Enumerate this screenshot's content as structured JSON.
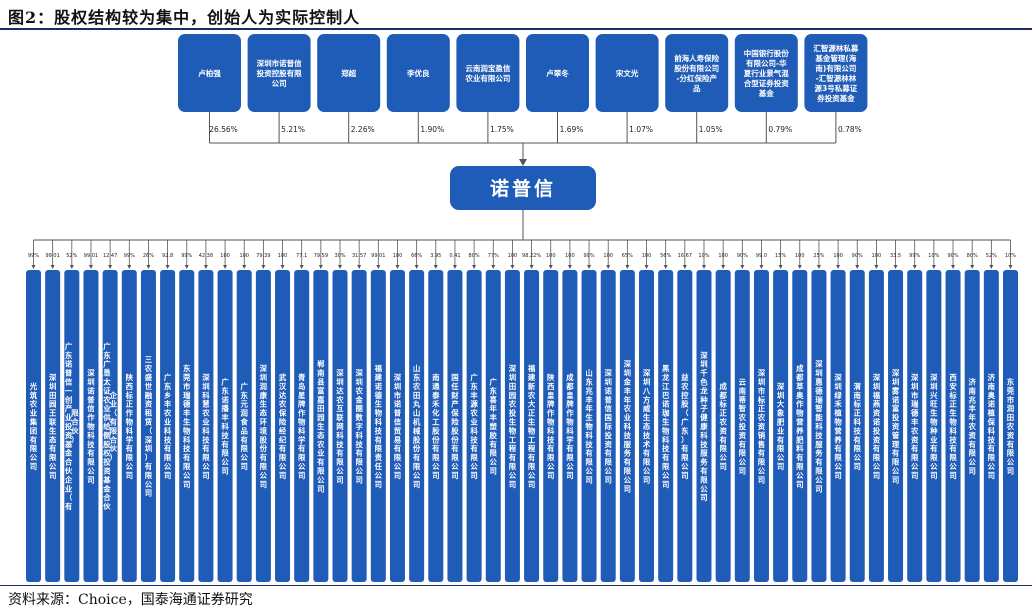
{
  "title": "图2：股权结构较为集中，创始人为实际控制人",
  "source": "资料来源：Choice，国泰海通证券研究",
  "center": {
    "name": "诺普信"
  },
  "colors": {
    "box": "#1f5cb8",
    "line": "#555555",
    "rule": "#1b2a6b"
  },
  "shareholders": [
    {
      "name": "卢柏强",
      "pct": "26.56%"
    },
    {
      "name": "深圳市诺普信投资控股有限公司",
      "pct": "5.21%"
    },
    {
      "name": "郑超",
      "pct": "2.26%"
    },
    {
      "name": "李优良",
      "pct": "1.90%"
    },
    {
      "name": "云南润宝盈信农业有限公司",
      "pct": "1.75%"
    },
    {
      "name": "卢翠冬",
      "pct": "1.69%"
    },
    {
      "name": "宋文光",
      "pct": "1.07%"
    },
    {
      "name": "前海人寿保险股份有限公司-分红保险产品",
      "pct": "1.05%"
    },
    {
      "name": "中国银行股份有限公司-华夏行业景气混合型证券投资基金",
      "pct": "0.79%"
    },
    {
      "name": "汇智源林私募基金管理(海南)有限公司-汇智源林林源3号私募证券投资基金",
      "pct": "0.78%"
    }
  ],
  "subsidiaries": [
    {
      "name": "光筑农业集团有限公司",
      "pct": "99%"
    },
    {
      "name": "深圳田园王联生态有限公司",
      "pct": "99.01"
    },
    {
      "name": "广东诺普信一创产业投资基金合伙企业（有限合伙）",
      "pct": "52%"
    },
    {
      "name": "深圳诺普信作物科技有限公司",
      "pct": "99.01"
    },
    {
      "name": "广东广垦太证农业供给侧股权投资基金合伙企业（有限合伙）",
      "pct": "12.47"
    },
    {
      "name": "陕西标正作物科学有限公司",
      "pct": "99%"
    },
    {
      "name": "三农盛世融资租赁（深圳）有限公司",
      "pct": "26%"
    },
    {
      "name": "广东乡丰农业科技有限公司",
      "pct": "92.8"
    },
    {
      "name": "东莞市瑞德丰生物科技有限公司",
      "pct": "99%"
    },
    {
      "name": "深圳科慧农业科技有限公司",
      "pct": "42.38"
    },
    {
      "name": "广东诺播丰科技有限公司",
      "pct": "100"
    },
    {
      "name": "广东元润食品有限公司",
      "pct": "100"
    },
    {
      "name": "深圳润康生态环境股份有限公司",
      "pct": "79.39"
    },
    {
      "name": "武汉达农保险经纪有限公司",
      "pct": "100"
    },
    {
      "name": "青岛星牌作物科学有限公司",
      "pct": "77.1"
    },
    {
      "name": "郸南县富嘉田园生态农业有限公司",
      "pct": "79.59"
    },
    {
      "name": "深圳达农互联网科技有限公司",
      "pct": "30%"
    },
    {
      "name": "深圳农金圈数字科技有限公司",
      "pct": "31.57"
    },
    {
      "name": "福建诺德生物科技有限责任公司",
      "pct": "99.01"
    },
    {
      "name": "深圳市诺普信贸易有限公司",
      "pct": "100"
    },
    {
      "name": "山东农田丸山机械股份有限公司",
      "pct": "66%"
    },
    {
      "name": "南通泰禾化工股份有限公司",
      "pct": "3.95"
    },
    {
      "name": "国任财产保险股份有限公司",
      "pct": "0.41"
    },
    {
      "name": "广东丰源农业科技有限公司",
      "pct": "80%"
    },
    {
      "name": "广东喜年丰塑胶有限公司",
      "pct": "77%"
    },
    {
      "name": "深圳田园农投生物工程有限公司",
      "pct": "100"
    },
    {
      "name": "福建新农大正生物工程有限公司",
      "pct": "98.22%"
    },
    {
      "name": "陕西皇牌作物科技有限公司",
      "pct": "100"
    },
    {
      "name": "成都皇牌作物科学有限公司",
      "pct": "100"
    },
    {
      "name": "山东兆丰年生物科技有限公司",
      "pct": "99%"
    },
    {
      "name": "深圳诺普信国际投资有限公司",
      "pct": "100"
    },
    {
      "name": "深圳金丰年农业科技服务有限公司",
      "pct": "65%"
    },
    {
      "name": "深圳八方威生态技术有限公司",
      "pct": "100"
    },
    {
      "name": "黑龙江巴诺珈生物科技有限公司",
      "pct": "56%"
    },
    {
      "name": "益农控股（广东）有限公司",
      "pct": "16.67"
    },
    {
      "name": "深圳千色龙种子健康科技服务有限公司",
      "pct": "10%"
    },
    {
      "name": "成都标正农资有限公司",
      "pct": "100"
    },
    {
      "name": "云南蒂智农投资有限公司",
      "pct": "90%"
    },
    {
      "name": "深圳市标正农资销售有限公司",
      "pct": "99.0"
    },
    {
      "name": "深圳大象肥业有限公司",
      "pct": "15%"
    },
    {
      "name": "成都草奥作物营养肥料有限公司",
      "pct": "100"
    },
    {
      "name": "深圳惠德瑞智能科技服务有限公司",
      "pct": "25%"
    },
    {
      "name": "深圳绿禾植物营养有限公司",
      "pct": "100"
    },
    {
      "name": "渭南标正科技有限公司",
      "pct": "90%"
    },
    {
      "name": "深圳福燕资诺投资有限公司",
      "pct": "100"
    },
    {
      "name": "深圳雾诺富投资管理有限公司",
      "pct": "33.5"
    },
    {
      "name": "深圳市瑞德丰农资有限公司",
      "pct": "99%"
    },
    {
      "name": "深圳兴旺生物种业有限公司",
      "pct": "10%"
    },
    {
      "name": "西安标正生物科技有限公司",
      "pct": "90%"
    },
    {
      "name": "济南兆丰年农资有限公司",
      "pct": "80%"
    },
    {
      "name": "济南奥诺植保科技有限公司",
      "pct": "52%"
    },
    {
      "name": "东莞市润田农资有限公司",
      "pct": "10%"
    }
  ]
}
